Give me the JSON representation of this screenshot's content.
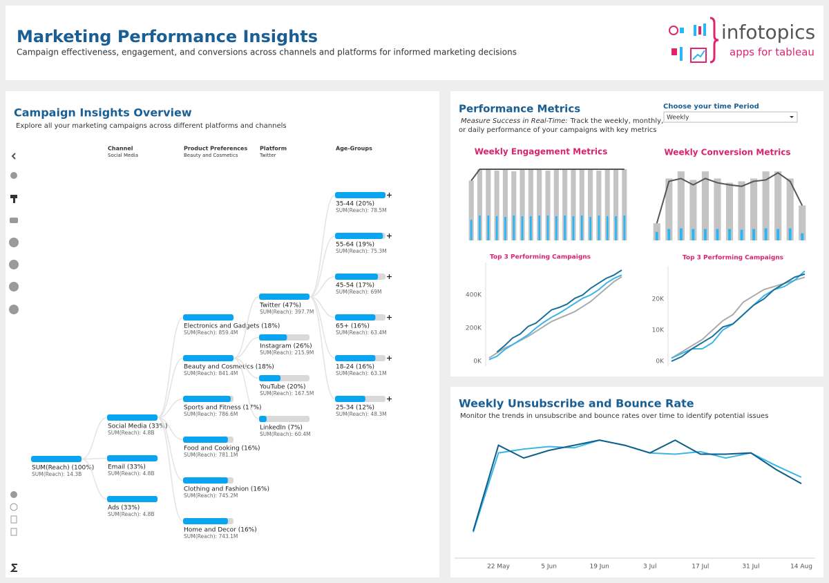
{
  "header": {
    "title": "Marketing Performance Insights",
    "subtitle": "Campaign effectiveness, engagement, and conversions across channels and platforms for informed marketing decisions",
    "logo": "infotopics",
    "logo_tagline": "apps for tableau"
  },
  "tree": {
    "title": "Campaign Insights Overview",
    "subtitle": "Explore all your marketing campaigns across different platforms and channels",
    "columns": [
      {
        "label": "Channel",
        "sub": "Social Media"
      },
      {
        "label": "Product Preferences",
        "sub": "Beauty and Cosmetics"
      },
      {
        "label": "Platform",
        "sub": "Twitter"
      },
      {
        "label": "Age-Groups"
      }
    ],
    "levels": [
      [
        {
          "label": "SUM(Reach) (100%)",
          "reach": "SUM(Reach): 14.3B",
          "share": 100
        }
      ],
      [
        {
          "label": "Social Media (33%)",
          "reach": "SUM(Reach): 4.8B",
          "share": 33
        },
        {
          "label": "Email (33%)",
          "reach": "SUM(Reach): 4.8B",
          "share": 33
        },
        {
          "label": "Ads (33%)",
          "reach": "SUM(Reach): 4.8B",
          "share": 33
        }
      ],
      [
        {
          "label": "Electronics and Gadgets (18%)",
          "reach": "SUM(Reach): 859.4M",
          "share": 18
        },
        {
          "label": "Beauty and Cosmetics (18%)",
          "reach": "SUM(Reach): 841.4M",
          "share": 18
        },
        {
          "label": "Sports and Fitness (17%)",
          "reach": "SUM(Reach): 786.6M",
          "share": 17
        },
        {
          "label": "Food and Cooking (16%)",
          "reach": "SUM(Reach): 781.1M",
          "share": 16
        },
        {
          "label": "Clothing and Fashion (16%)",
          "reach": "SUM(Reach): 745.2M",
          "share": 16
        },
        {
          "label": "Home and Decor (16%)",
          "reach": "SUM(Reach): 743.1M",
          "share": 16
        }
      ],
      [
        {
          "label": "Twitter (47%)",
          "reach": "SUM(Reach): 397.7M",
          "share": 47
        },
        {
          "label": "Instagram (26%)",
          "reach": "SUM(Reach): 215.9M",
          "share": 26
        },
        {
          "label": "YouTube (20%)",
          "reach": "SUM(Reach): 167.5M",
          "share": 20
        },
        {
          "label": "LinkedIn (7%)",
          "reach": "SUM(Reach): 60.4M",
          "share": 7
        }
      ],
      [
        {
          "label": "35-44 (20%)",
          "reach": "SUM(Reach): 78.5M",
          "share": 20
        },
        {
          "label": "55-64 (19%)",
          "reach": "SUM(Reach): 75.3M",
          "share": 19
        },
        {
          "label": "45-54 (17%)",
          "reach": "SUM(Reach): 69M",
          "share": 17
        },
        {
          "label": "65+ (16%)",
          "reach": "SUM(Reach): 63.4M",
          "share": 16
        },
        {
          "label": "18-24 (16%)",
          "reach": "SUM(Reach): 63.1M",
          "share": 16
        },
        {
          "label": "25-34 (12%)",
          "reach": "SUM(Reach): 48.3M",
          "share": 12
        }
      ]
    ]
  },
  "metrics": {
    "title": "Performance Metrics",
    "emphasis": "Measure Success in Real-Time:",
    "lines": [
      "Track the weekly, monthly,",
      "or daily performance of your campaigns with key metrics"
    ],
    "period_label": "Choose your time Period",
    "period": "Weekly"
  },
  "unsubscribe": {
    "title": "Weekly Unsubscribe and Bounce Rate",
    "subtitle": "Monitor the trends in unsubscribe and bounce rates over time to identify potential issues"
  },
  "chart_data": [
    {
      "type": "combo",
      "title": "Weekly Engagement  Metrics",
      "ylim": [
        0,
        100
      ],
      "categories": [
        null,
        null,
        null,
        null,
        null,
        null,
        null,
        null,
        null,
        null,
        null,
        null,
        null,
        null,
        null,
        null,
        null,
        null,
        null
      ],
      "series": [
        {
          "type": "bar",
          "color": "#c4c4c4",
          "values": [
            84,
            100,
            100,
            98,
            100,
            97,
            100,
            100,
            100,
            98,
            100,
            100,
            100,
            100,
            100,
            98,
            100,
            100,
            100
          ]
        },
        {
          "type": "bar",
          "color": "#29b6f6",
          "values": [
            29,
            35,
            35,
            34,
            33,
            35,
            34,
            34,
            35,
            35,
            34,
            35,
            34,
            35,
            33,
            35,
            34,
            34,
            35
          ]
        },
        {
          "type": "line",
          "color": "#555555",
          "values": [
            84,
            100,
            100,
            100,
            100,
            100,
            100,
            100,
            100,
            100,
            100,
            100,
            100,
            100,
            100,
            100,
            100,
            100,
            100
          ]
        }
      ]
    },
    {
      "type": "combo",
      "title": "Weekly Conversion Metrics",
      "ylim": [
        0,
        100
      ],
      "categories": [
        null,
        null,
        null,
        null,
        null,
        null,
        null,
        null,
        null,
        null,
        null,
        null,
        null
      ],
      "series": [
        {
          "type": "bar",
          "color": "#c4c4c4",
          "values": [
            24,
            87,
            97,
            85,
            97,
            87,
            81,
            83,
            87,
            97,
            97,
            87,
            49
          ]
        },
        {
          "type": "bar",
          "color": "#29b6f6",
          "values": [
            12,
            16,
            17,
            16,
            16,
            16,
            16,
            15,
            16,
            17,
            16,
            17,
            10
          ]
        },
        {
          "type": "line",
          "color": "#555555",
          "values": [
            24,
            83,
            87,
            78,
            87,
            81,
            78,
            76,
            83,
            85,
            95,
            83,
            49
          ]
        }
      ]
    },
    {
      "type": "line",
      "title": "Top 3 Performing Campaigns",
      "ylim": [
        0,
        575000
      ],
      "yticks": [
        {
          "value": 0,
          "label": "0K"
        },
        {
          "value": 200000,
          "label": "200K"
        },
        {
          "value": 400000,
          "label": "400K"
        }
      ],
      "categories": [
        null,
        null,
        null,
        null,
        null,
        null,
        null,
        null,
        null,
        null,
        null,
        null,
        null,
        null,
        null,
        null,
        null,
        null
      ],
      "series": [
        {
          "color": "#aaaaaa",
          "values": [
            20000,
            50000,
            80000,
            100000,
            125000,
            150000,
            180000,
            210000,
            240000,
            260000,
            280000,
            300000,
            330000,
            360000,
            400000,
            440000,
            480000,
            510000
          ]
        },
        {
          "color": "#3ab5e6",
          "values": [
            10000,
            30000,
            70000,
            100000,
            130000,
            160000,
            200000,
            235000,
            265000,
            290000,
            320000,
            350000,
            380000,
            400000,
            430000,
            470000,
            500000,
            520000
          ]
        },
        {
          "color": "#1a6e99",
          "values": [
            null,
            55000,
            95000,
            140000,
            165000,
            210000,
            230000,
            270000,
            310000,
            325000,
            345000,
            380000,
            400000,
            440000,
            470000,
            500000,
            520000,
            550000
          ]
        }
      ]
    },
    {
      "type": "line",
      "title": "Top 3 Performing Campaigns",
      "ylim": [
        0,
        29500
      ],
      "yticks": [
        {
          "value": 0,
          "label": "0K"
        },
        {
          "value": 10000,
          "label": "10K"
        },
        {
          "value": 20000,
          "label": "20K"
        }
      ],
      "categories": [
        null,
        null,
        null,
        null,
        null,
        null,
        null,
        null,
        null,
        null,
        null,
        null,
        null,
        null
      ],
      "series": [
        {
          "color": "#aaaaaa",
          "values": [
            1000,
            3000,
            5000,
            7000,
            10000,
            13000,
            15000,
            19000,
            21000,
            23000,
            24000,
            25000,
            26000,
            27000
          ]
        },
        {
          "color": "#3ab5e6",
          "values": [
            1000,
            2500,
            4000,
            4000,
            6000,
            10000,
            12000,
            15000,
            18000,
            21000,
            23000,
            24000,
            26000,
            29000
          ]
        },
        {
          "color": "#1a6e99",
          "values": [
            0,
            1500,
            4000,
            6000,
            8000,
            11000,
            12000,
            15000,
            18000,
            20000,
            23000,
            25000,
            27000,
            28000
          ]
        }
      ]
    },
    {
      "type": "line",
      "ylim": [
        0,
        100
      ],
      "axis_line": true,
      "categories": [
        null,
        "22 May",
        null,
        "5 Jun",
        null,
        "19 Jun",
        null,
        "3 Jul",
        null,
        "17 Jul",
        null,
        "31 Jul",
        null,
        "14 Aug"
      ],
      "series": [
        {
          "color": "#3ab5e6",
          "values": [
            16,
            78,
            81,
            83,
            82,
            88,
            84,
            78,
            77,
            79,
            74,
            78,
            68,
            59
          ]
        },
        {
          "color": "#0c5d8a",
          "values": [
            17,
            84,
            74,
            80,
            84,
            88,
            84,
            78,
            88,
            77,
            77,
            78,
            65,
            54
          ]
        }
      ]
    }
  ]
}
